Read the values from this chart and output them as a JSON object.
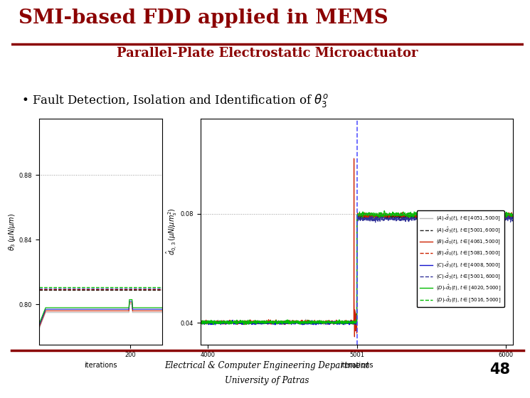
{
  "title_main": "SMI-based FDD applied in MEMS",
  "title_sub": "Parallel-Plate Electrostatic Microactuator",
  "bullet_text": "Fault Detection, Isolation and Identification of ",
  "bullet_math": "$\\theta_3^o$",
  "footer_line1": "Electrical & Computer Engineering Department",
  "footer_line2": "University of Patras",
  "page_number": "48",
  "title_color": "#8B0000",
  "bg_color": "#FFFFFF",
  "left_plot": {
    "ylabel": "$\\theta_3\\,(\\mu N/\\mu m)$",
    "xlabel": "iterations",
    "xlim": [
      0,
      270
    ],
    "ylim": [
      0.775,
      0.915
    ],
    "yticks": [
      0.8,
      0.84,
      0.88
    ],
    "xticks": [
      200
    ],
    "hline_val": 0.88
  },
  "right_plot": {
    "ylabel": "$\\hat{d}_{0,3}\\,(\\mu N/\\mu m_s^2)$",
    "xlabel": "iterations",
    "xlim": [
      3950,
      6050
    ],
    "ylim": [
      0.032,
      0.115
    ],
    "yticks": [
      0.04,
      0.08
    ],
    "xticks": [
      4000,
      5001,
      6000
    ],
    "hline_val": 0.08,
    "vline_val": 5001
  },
  "legend_entries": [
    {
      "label": "$(A)$-$\\hat{d}_3(t)$, $t\\in[4051,5000]$",
      "color": "#AAAAAA",
      "style": "-"
    },
    {
      "label": "$(A)$-$\\hat{d}_3(t)$, $t\\in[5001,6000]$",
      "color": "#000000",
      "style": "--"
    },
    {
      "label": "$(B)$-$\\hat{d}_0(t)$, $t\\in[4061,5000]$",
      "color": "#CC0000",
      "style": "-"
    },
    {
      "label": "$(B)$-$\\hat{d}_0(t)$, $t\\in[5081,5000]$",
      "color": "#CC0000",
      "style": "--"
    },
    {
      "label": "$(C)$-$\\hat{d}_3(t)$, $t\\in[4008,5000]$",
      "color": "#0000CC",
      "style": "-"
    },
    {
      "label": "$(C)$-$\\hat{d}_3(t)$, $t\\in[5001,6000]$",
      "color": "#000000",
      "style": "--"
    },
    {
      "label": "$(D)$-$\\hat{d}_3(t)$, $t\\in[4020,5000]$",
      "color": "#00AA00",
      "style": "-"
    },
    {
      "label": "$(D)$-$\\hat{d}_3(t)$, $t\\in[5016,5000]$",
      "color": "#00AA00",
      "style": "--"
    }
  ]
}
